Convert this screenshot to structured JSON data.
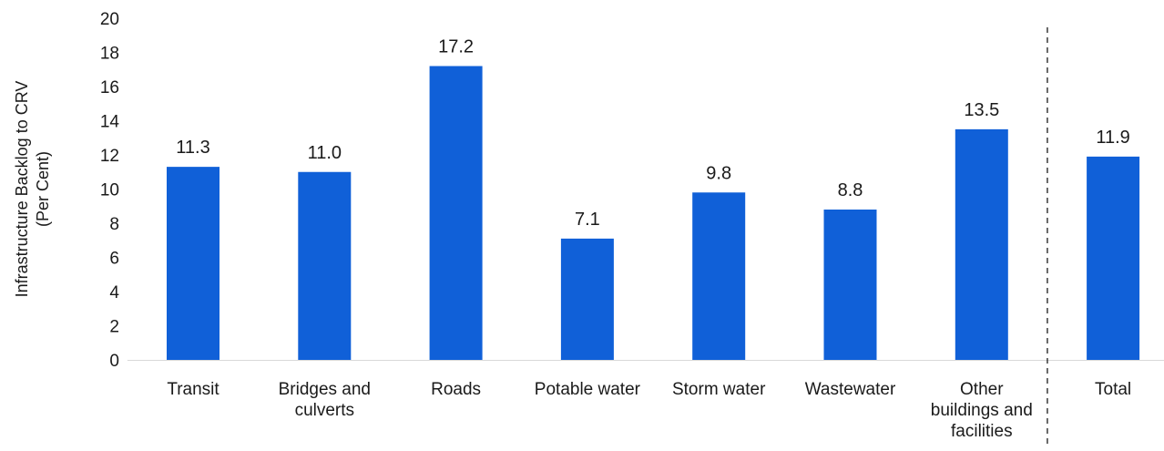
{
  "chart_data": {
    "type": "bar",
    "title": "",
    "xlabel": "",
    "ylabel": [
      "Infrastructure Backlog to CRV",
      "(Per Cent)"
    ],
    "ylim": [
      0,
      20
    ],
    "yticks": [
      0,
      2,
      4,
      6,
      8,
      10,
      12,
      14,
      16,
      18,
      20
    ],
    "grid": false,
    "categories": [
      [
        "Transit"
      ],
      [
        "Bridges and",
        "culverts"
      ],
      [
        "Roads"
      ],
      [
        "Potable water"
      ],
      [
        "Storm water"
      ],
      [
        "Wastewater"
      ],
      [
        "Other",
        "buildings and",
        "facilities"
      ],
      [
        "Total"
      ]
    ],
    "values": [
      11.3,
      11.0,
      17.2,
      7.1,
      9.8,
      8.8,
      13.5,
      11.9
    ],
    "data_labels": [
      "11.3",
      "11.0",
      "17.2",
      "7.1",
      "9.8",
      "8.8",
      "13.5",
      "11.9"
    ],
    "bar_color": "#1060D8",
    "separator_before_category": "Total"
  }
}
